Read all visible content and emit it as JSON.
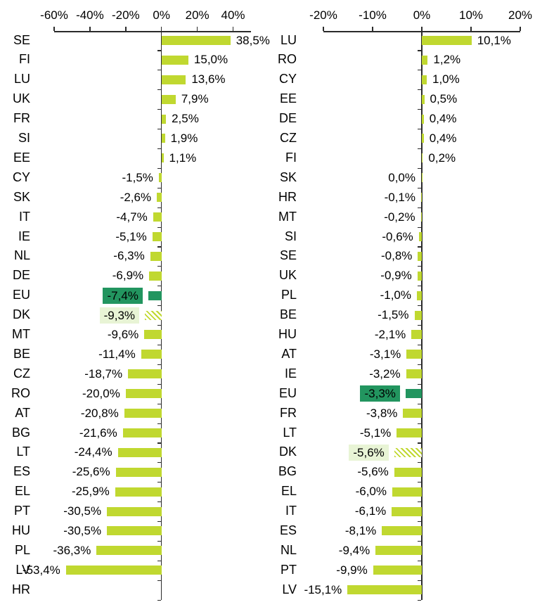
{
  "page": {
    "background": "#ffffff"
  },
  "colors": {
    "bar": "#c0d830",
    "eu_highlight": "#22955f",
    "dk_highlight_bg": "#e8f4d5",
    "axis": "#2b2b2b",
    "text": "#000000"
  },
  "chart_data": [
    {
      "type": "bar",
      "orientation": "horizontal",
      "title": "",
      "xlabel": "",
      "ylabel": "",
      "grid": false,
      "legend": null,
      "xlim": [
        -60,
        50
      ],
      "x_ticks": [
        {
          "value": -60,
          "label": "-60%"
        },
        {
          "value": -40,
          "label": "-40%"
        },
        {
          "value": -20,
          "label": "-20%"
        },
        {
          "value": 0,
          "label": "0%"
        },
        {
          "value": 20,
          "label": "20%"
        },
        {
          "value": 40,
          "label": "40%"
        }
      ],
      "categories": [
        "SE",
        "FI",
        "LU",
        "UK",
        "FR",
        "SI",
        "EE",
        "CY",
        "SK",
        "IT",
        "IE",
        "NL",
        "DE",
        "EU",
        "DK",
        "MT",
        "BE",
        "CZ",
        "RO",
        "AT",
        "BG",
        "LT",
        "ES",
        "EL",
        "PT",
        "HU",
        "PL",
        "LV",
        "HR"
      ],
      "values": [
        38.5,
        15.0,
        13.6,
        7.9,
        2.5,
        1.9,
        1.1,
        -1.5,
        -2.6,
        -4.7,
        -5.1,
        -6.3,
        -6.9,
        -7.4,
        -9.3,
        -9.6,
        -11.4,
        -18.7,
        -20.0,
        -20.8,
        -21.6,
        -24.4,
        -25.6,
        -25.9,
        -30.5,
        -30.5,
        -36.3,
        -53.4,
        null
      ],
      "value_labels": [
        "38,5%",
        "15,0%",
        "13,6%",
        "7,9%",
        "2,5%",
        "1,9%",
        "1,1%",
        "-1,5%",
        "-2,6%",
        "-4,7%",
        "-5,1%",
        "-6,3%",
        "-6,9%",
        "-7,4%",
        "-9,3%",
        "-9,6%",
        "-11,4%",
        "-18,7%",
        "-20,0%",
        "-20,8%",
        "-21,6%",
        "-24,4%",
        "-25,6%",
        "-25,9%",
        "-30,5%",
        "-30,5%",
        "-36,3%",
        "-53,4%",
        ""
      ],
      "highlights": {
        "EU": "eu",
        "DK": "dk"
      }
    },
    {
      "type": "bar",
      "orientation": "horizontal",
      "title": "",
      "xlabel": "",
      "ylabel": "",
      "grid": false,
      "legend": null,
      "xlim": [
        -20,
        20
      ],
      "x_ticks": [
        {
          "value": -20,
          "label": "-20%"
        },
        {
          "value": -10,
          "label": "-10%"
        },
        {
          "value": 0,
          "label": "0%"
        },
        {
          "value": 10,
          "label": "10%"
        },
        {
          "value": 20,
          "label": "20%"
        }
      ],
      "categories": [
        "LU",
        "RO",
        "CY",
        "EE",
        "DE",
        "CZ",
        "FI",
        "SK",
        "HR",
        "MT",
        "SI",
        "SE",
        "UK",
        "PL",
        "BE",
        "HU",
        "AT",
        "IE",
        "EU",
        "FR",
        "LT",
        "DK",
        "BG",
        "EL",
        "IT",
        "ES",
        "NL",
        "PT",
        "LV"
      ],
      "values": [
        10.1,
        1.2,
        1.0,
        0.5,
        0.4,
        0.4,
        0.2,
        0.0,
        -0.1,
        -0.2,
        -0.6,
        -0.8,
        -0.9,
        -1.0,
        -1.5,
        -2.1,
        -3.1,
        -3.2,
        -3.3,
        -3.8,
        -5.1,
        -5.6,
        -5.6,
        -6.0,
        -6.1,
        -8.1,
        -9.4,
        -9.9,
        -15.1
      ],
      "value_labels": [
        "10,1%",
        "1,2%",
        "1,0%",
        "0,5%",
        "0,4%",
        "0,4%",
        "0,2%",
        "0,0%",
        "-0,1%",
        "-0,2%",
        "-0,6%",
        "-0,8%",
        "-0,9%",
        "-1,0%",
        "-1,5%",
        "-2,1%",
        "-3,1%",
        "-3,2%",
        "-3,3%",
        "-3,8%",
        "-5,1%",
        "-5,6%",
        "-5,6%",
        "-6,0%",
        "-6,1%",
        "-8,1%",
        "-9,4%",
        "-9,9%",
        "-15,1%"
      ],
      "highlights": {
        "EU": "eu",
        "DK": "dk"
      }
    }
  ]
}
